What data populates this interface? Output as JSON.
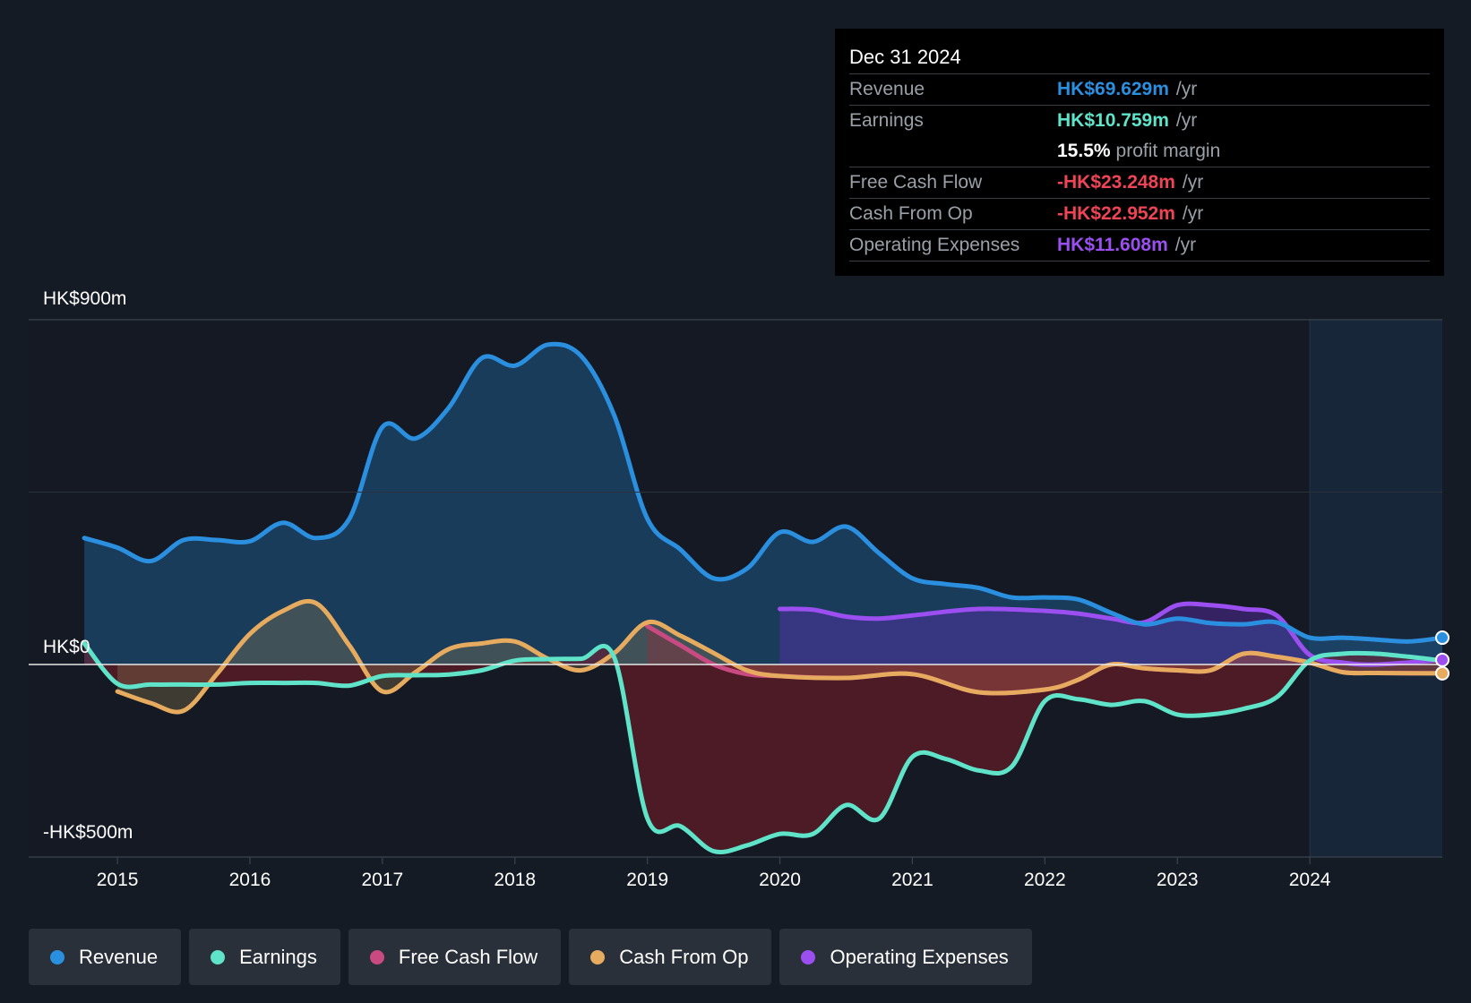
{
  "tooltip": {
    "date": "Dec 31 2024",
    "rows": [
      {
        "label": "Revenue",
        "value": "HK$69.629m",
        "unit": "/yr"
      },
      {
        "label": "Earnings",
        "value": "HK$10.759m",
        "unit": "/yr"
      },
      {
        "label": "",
        "value": "15.5%",
        "unit": "profit margin"
      },
      {
        "label": "Free Cash Flow",
        "value": "-HK$23.248m",
        "unit": "/yr"
      },
      {
        "label": "Cash From Op",
        "value": "-HK$22.952m",
        "unit": "/yr"
      },
      {
        "label": "Operating Expenses",
        "value": "HK$11.608m",
        "unit": "/yr"
      }
    ]
  },
  "colors": {
    "revenue": "#2b8fe0",
    "earnings": "#5fe3c9",
    "free_cash_flow": "#d9467a",
    "cash_from_op": "#e6ab5e",
    "operating_expenses": "#9c4ff0",
    "negative_value": "#ee4455",
    "background": "#151b24"
  },
  "legend": [
    {
      "label": "Revenue",
      "color": "#2b8fe0"
    },
    {
      "label": "Earnings",
      "color": "#5fe3c9"
    },
    {
      "label": "Free Cash Flow",
      "color": "#c94a80"
    },
    {
      "label": "Cash From Op",
      "color": "#e6ab5e"
    },
    {
      "label": "Operating Expenses",
      "color": "#9c4ff0"
    }
  ],
  "chart_data": {
    "type": "line",
    "title": "",
    "xlabel": "",
    "ylabel": "",
    "y_axis_labels": [
      "HK$900m",
      "HK$0",
      "-HK$500m"
    ],
    "ylim": [
      -500,
      900
    ],
    "xlim": [
      2014.33,
      2025.0
    ],
    "x_ticks": [
      2015,
      2016,
      2017,
      2018,
      2019,
      2020,
      2021,
      2022,
      2023,
      2024
    ],
    "x_tick_labels": [
      "2015",
      "2016",
      "2017",
      "2018",
      "2019",
      "2020",
      "2021",
      "2022",
      "2023",
      "2024"
    ],
    "highlight_range": [
      2024.0,
      2025.0
    ],
    "series": [
      {
        "name": "Revenue",
        "key": "revenue",
        "x": [
          2014.75,
          2015.0,
          2015.25,
          2015.5,
          2015.75,
          2016.0,
          2016.25,
          2016.5,
          2016.75,
          2017.0,
          2017.25,
          2017.5,
          2017.75,
          2018.0,
          2018.25,
          2018.5,
          2018.75,
          2019.0,
          2019.25,
          2019.5,
          2019.75,
          2020.0,
          2020.25,
          2020.5,
          2020.75,
          2021.0,
          2021.25,
          2021.5,
          2021.75,
          2022.0,
          2022.25,
          2022.5,
          2022.75,
          2023.0,
          2023.25,
          2023.5,
          2023.75,
          2024.0,
          2024.25,
          2024.5,
          2024.75,
          2025.0
        ],
        "values": [
          330,
          305,
          270,
          325,
          325,
          322,
          370,
          330,
          380,
          620,
          590,
          670,
          800,
          780,
          835,
          805,
          650,
          380,
          300,
          225,
          250,
          345,
          320,
          360,
          290,
          225,
          210,
          200,
          175,
          175,
          170,
          135,
          105,
          120,
          108,
          105,
          110,
          70,
          70,
          65,
          60,
          70
        ]
      },
      {
        "name": "Earnings",
        "key": "earnings",
        "x": [
          2014.75,
          2015.0,
          2015.25,
          2015.5,
          2015.75,
          2016.0,
          2016.25,
          2016.5,
          2016.75,
          2017.0,
          2017.25,
          2017.5,
          2017.75,
          2018.0,
          2018.25,
          2018.5,
          2018.75,
          2019.0,
          2019.25,
          2019.5,
          2019.75,
          2020.0,
          2020.25,
          2020.5,
          2020.75,
          2021.0,
          2021.25,
          2021.5,
          2021.75,
          2022.0,
          2022.25,
          2022.5,
          2022.75,
          2023.0,
          2023.25,
          2023.5,
          2023.75,
          2024.0,
          2024.25,
          2024.5,
          2024.75,
          2025.0
        ],
        "values": [
          55,
          -50,
          -52,
          -52,
          -52,
          -48,
          -48,
          -48,
          -55,
          -30,
          -28,
          -26,
          -15,
          10,
          14,
          15,
          18,
          -400,
          -420,
          -485,
          -470,
          -440,
          -440,
          -365,
          -400,
          -240,
          -245,
          -275,
          -265,
          -95,
          -90,
          -105,
          -95,
          -130,
          -130,
          -115,
          -85,
          10,
          28,
          28,
          20,
          10
        ]
      },
      {
        "name": "Free Cash Flow",
        "key": "free_cash_flow",
        "x": [
          2019.0,
          2019.25,
          2019.5,
          2019.75,
          2020.0,
          2020.5,
          2021.0,
          2021.5,
          2022.0,
          2022.25,
          2022.5,
          2022.75,
          2023.0,
          2023.25,
          2023.5,
          2023.75,
          2024.0,
          2024.25,
          2024.5,
          2025.0
        ],
        "values": [
          100,
          50,
          0,
          -25,
          -30,
          -35,
          -25,
          -72,
          -65,
          -40,
          0,
          -10,
          -15,
          -15,
          28,
          20,
          5,
          -20,
          -22,
          -23
        ]
      },
      {
        "name": "Cash From Op",
        "key": "cash_from_op",
        "x": [
          2015.0,
          2015.25,
          2015.5,
          2015.75,
          2016.0,
          2016.25,
          2016.5,
          2016.75,
          2017.0,
          2017.25,
          2017.5,
          2017.75,
          2018.0,
          2018.25,
          2018.5,
          2018.75,
          2019.0,
          2019.25,
          2019.5,
          2019.75,
          2020.0,
          2020.5,
          2021.0,
          2021.5,
          2022.0,
          2022.25,
          2022.5,
          2022.75,
          2023.0,
          2023.25,
          2023.5,
          2023.75,
          2024.0,
          2024.25,
          2024.5,
          2025.0
        ],
        "values": [
          -70,
          -100,
          -120,
          -25,
          80,
          140,
          160,
          50,
          -70,
          -20,
          40,
          55,
          60,
          15,
          -15,
          30,
          110,
          75,
          30,
          -15,
          -30,
          -35,
          -25,
          -72,
          -65,
          -40,
          0,
          -10,
          -15,
          -15,
          28,
          20,
          5,
          -20,
          -22,
          -23
        ]
      },
      {
        "name": "Operating Expenses",
        "key": "operating_expenses",
        "x": [
          2020.0,
          2020.25,
          2020.5,
          2020.75,
          2021.0,
          2021.5,
          2022.0,
          2022.25,
          2022.5,
          2022.75,
          2023.0,
          2023.25,
          2023.5,
          2023.75,
          2024.0,
          2024.25,
          2024.5,
          2025.0
        ],
        "values": [
          145,
          143,
          125,
          120,
          128,
          145,
          140,
          133,
          120,
          110,
          155,
          155,
          145,
          128,
          25,
          5,
          0,
          12
        ]
      }
    ]
  }
}
